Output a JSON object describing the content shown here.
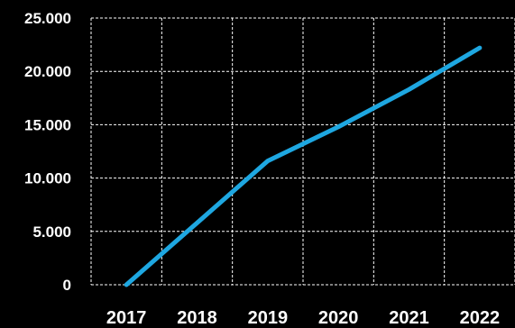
{
  "chart_data": {
    "type": "line",
    "x": [
      "2017",
      "2018",
      "2019",
      "2020",
      "2021",
      "2022"
    ],
    "series": [
      {
        "values": [
          0,
          5800,
          11600,
          14800,
          18300,
          22200
        ]
      }
    ],
    "ylim": [
      0,
      25000
    ],
    "yticks": [
      {
        "value": 0,
        "label": "0"
      },
      {
        "value": 5000,
        "label": "5.000"
      },
      {
        "value": 10000,
        "label": "10.000"
      },
      {
        "value": 15000,
        "label": "15.000"
      },
      {
        "value": 20000,
        "label": "20.000"
      },
      {
        "value": 25000,
        "label": "25.000"
      }
    ],
    "xticks": [
      "2017",
      "2018",
      "2019",
      "2020",
      "2021",
      "2022"
    ],
    "grid": true,
    "colors": {
      "background": "#000000",
      "grid": "#ffffff",
      "line": "#1ea7e1",
      "text": "#ffffff"
    }
  }
}
